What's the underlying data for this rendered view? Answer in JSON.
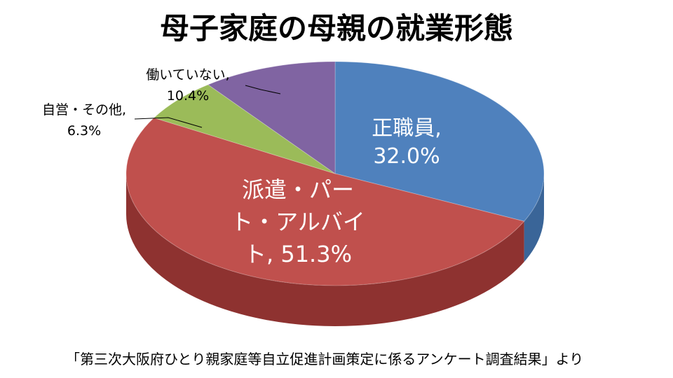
{
  "title": "母子家庭の母親の就業形態",
  "source": "「第三次大阪府ひとり親家庭等自立促進計画策定に係るアンケート調査結果」より",
  "chart_data": {
    "type": "pie",
    "title": "母子家庭の母親の就業形態",
    "slices": [
      {
        "label_lines": [
          "正職員,",
          "32.0%"
        ],
        "value": 32.0,
        "color": "#4f81bd",
        "side": "#3a6598"
      },
      {
        "label_lines": [
          "派遣・パー",
          "ト・アルバイ",
          "ト, 51.3%"
        ],
        "value": 51.3,
        "color": "#c0504d",
        "side": "#8e3230"
      },
      {
        "label_lines": [
          "自営・その他,",
          "6.3%"
        ],
        "value": 6.3,
        "color": "#9bbb59",
        "side": "#6f8a3a"
      },
      {
        "label_lines": [
          "働いていない,",
          "10.4%"
        ],
        "value": 10.4,
        "color": "#8064a2",
        "side": "#5c4678"
      }
    ],
    "legend": "none",
    "label_placement": "inside for large slices, outside with leader lines for small slices"
  }
}
